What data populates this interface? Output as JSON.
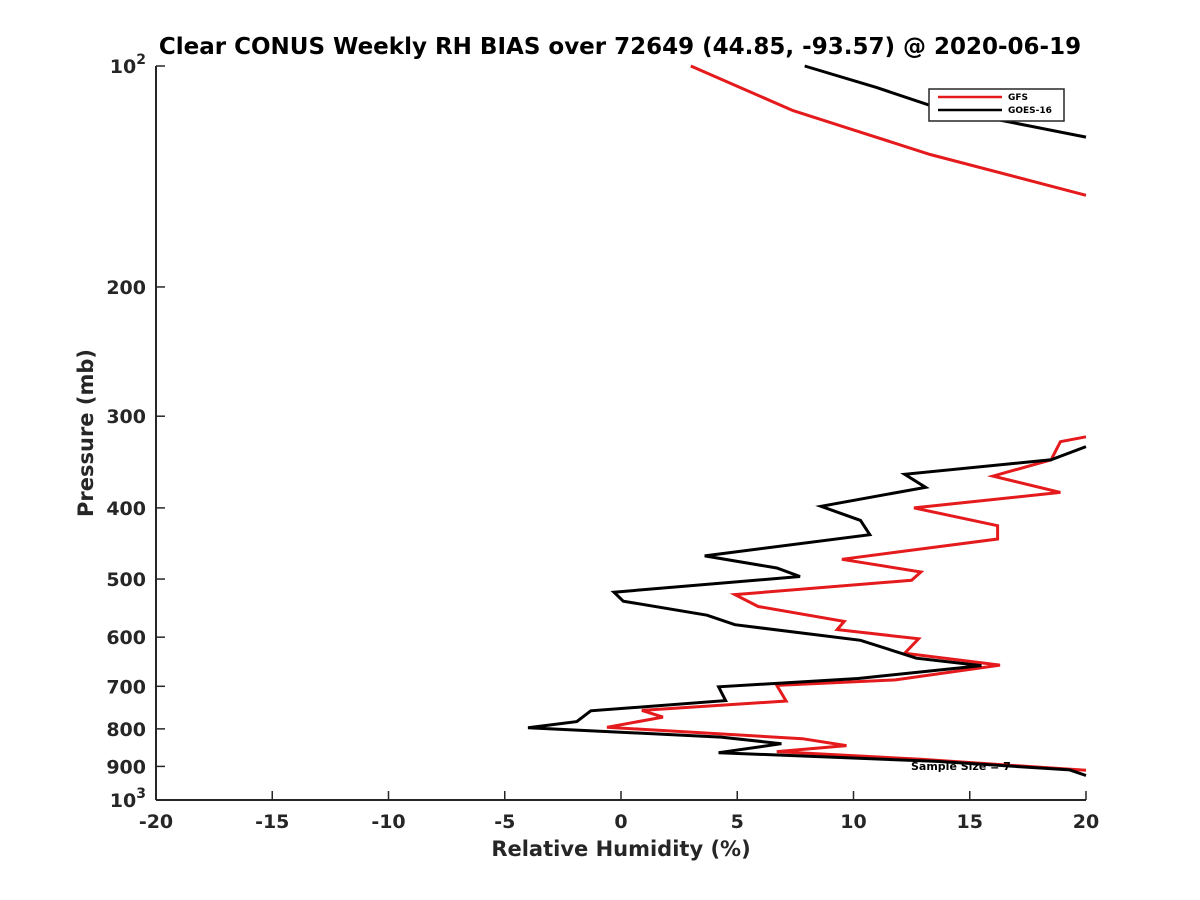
{
  "chart_data": {
    "type": "line",
    "title": "Clear CONUS Weekly RH BIAS over 72649 (44.85, -93.57) @ 2020-06-19",
    "xlabel": "Relative Humidity (%)",
    "ylabel": "Pressure (mb)",
    "xlim": [
      -20,
      20
    ],
    "ylim": [
      100,
      1000
    ],
    "y_scale": "log",
    "y_reversed": true,
    "grid": false,
    "legend_position": "top-right",
    "x_ticks": [
      "-20",
      "-15",
      "-10",
      "-5",
      "0",
      "5",
      "10",
      "15",
      "20"
    ],
    "y_ticks": [
      {
        "value": 100,
        "base": "10",
        "exp": "2"
      },
      {
        "value": 200,
        "label": "200"
      },
      {
        "value": 300,
        "label": "300"
      },
      {
        "value": 400,
        "label": "400"
      },
      {
        "value": 500,
        "label": "500"
      },
      {
        "value": 600,
        "label": "600"
      },
      {
        "value": 700,
        "label": "700"
      },
      {
        "value": 800,
        "label": "800"
      },
      {
        "value": 900,
        "label": "900"
      },
      {
        "value": 1000,
        "base": "10",
        "exp": "3"
      }
    ],
    "annotation": "Sample Size = 7",
    "series": [
      {
        "name": "GFS",
        "color": "#e41a1c",
        "points": [
          [
            3.0,
            100
          ],
          [
            7.4,
            115
          ],
          [
            13.3,
            132
          ],
          [
            20.0,
            150
          ],
          [
            20.0,
            140
          ]
        ],
        "segments": [
          [
            [
              3.0,
              100
            ],
            [
              7.4,
              115
            ],
            [
              13.3,
              132
            ],
            [
              20.0,
              150
            ]
          ],
          [
            [
              20.0,
              320
            ],
            [
              18.9,
              325
            ],
            [
              18.5,
              344
            ],
            [
              16.0,
              362
            ],
            [
              18.9,
              381
            ],
            [
              12.6,
              400
            ],
            [
              16.2,
              423
            ],
            [
              16.2,
              441
            ],
            [
              9.5,
              470
            ],
            [
              12.9,
              489
            ],
            [
              12.5,
              502
            ],
            [
              4.9,
              525
            ],
            [
              5.9,
              545
            ],
            [
              9.6,
              571
            ],
            [
              9.3,
              586
            ],
            [
              12.8,
              603
            ],
            [
              12.2,
              631
            ],
            [
              16.3,
              655
            ],
            [
              11.8,
              686
            ],
            [
              6.7,
              698
            ],
            [
              7.1,
              733
            ],
            [
              0.9,
              755
            ],
            [
              1.8,
              771
            ],
            [
              -0.6,
              796
            ],
            [
              7.8,
              825
            ],
            [
              9.7,
              843
            ],
            [
              6.7,
              859
            ],
            [
              12.9,
              880
            ],
            [
              20.0,
              911
            ]
          ]
        ]
      },
      {
        "name": "GOES-16",
        "color": "#000000",
        "segments": [
          [
            [
              7.9,
              100
            ],
            [
              11.0,
              107
            ],
            [
              13.6,
              114
            ],
            [
              20.0,
              125
            ]
          ],
          [
            [
              20.0,
              330
            ],
            [
              18.5,
              344
            ],
            [
              12.2,
              360
            ],
            [
              13.1,
              375
            ],
            [
              8.6,
              398
            ],
            [
              10.3,
              416
            ],
            [
              10.7,
              435
            ],
            [
              3.6,
              465
            ],
            [
              6.7,
              483
            ],
            [
              7.7,
              496
            ],
            [
              -0.3,
              521
            ],
            [
              0.1,
              536
            ],
            [
              3.7,
              560
            ],
            [
              4.9,
              577
            ],
            [
              10.3,
              606
            ],
            [
              11.9,
              629
            ],
            [
              12.7,
              641
            ],
            [
              15.5,
              656
            ],
            [
              10.2,
              683
            ],
            [
              4.2,
              701
            ],
            [
              4.5,
              732
            ],
            [
              -1.3,
              756
            ],
            [
              -1.9,
              782
            ],
            [
              -4.0,
              797
            ],
            [
              4.3,
              821
            ],
            [
              6.9,
              838
            ],
            [
              4.2,
              862
            ],
            [
              13.6,
              886
            ],
            [
              19.3,
              910
            ],
            [
              20.0,
              926
            ]
          ]
        ]
      }
    ]
  }
}
